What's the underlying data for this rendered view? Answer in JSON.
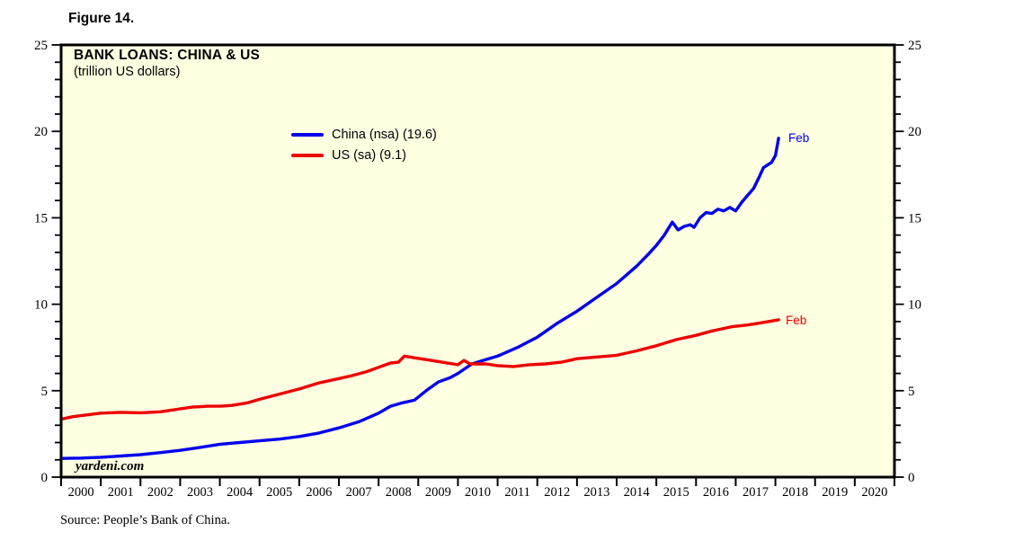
{
  "figure_label": "Figure 14.",
  "chart": {
    "title": "BANK LOANS: CHINA & US",
    "subtitle": "(trillion US dollars)",
    "watermark": "yardeni.com",
    "source": "Source: People’s Bank of China.",
    "legend": [
      {
        "label": "China (nsa) (19.6)"
      },
      {
        "label": "US (sa) (9.1)"
      }
    ],
    "end_labels": [
      {
        "text": "Feb"
      },
      {
        "text": "Feb"
      }
    ]
  },
  "chart_data": {
    "type": "line",
    "title": "BANK LOANS: CHINA & US",
    "subtitle": "(trillion US dollars)",
    "xlabel": "",
    "ylabel": "trillion US dollars",
    "xlim": [
      2000,
      2021
    ],
    "ylim": [
      0,
      25
    ],
    "y_major_ticks": [
      0,
      5,
      10,
      15,
      20,
      25
    ],
    "y_minor_step": 1,
    "x_tick_labels": [
      "2000",
      "2001",
      "2002",
      "2003",
      "2004",
      "2005",
      "2006",
      "2007",
      "2008",
      "2009",
      "2010",
      "2011",
      "2012",
      "2013",
      "2014",
      "2015",
      "2016",
      "2017",
      "2018",
      "2019",
      "2020"
    ],
    "grid": false,
    "legend_position": "inside-top-left",
    "plot_bg_color": "#FFFFE2",
    "axis_color": "#000000",
    "series": [
      {
        "name": "China (nsa)",
        "latest_point_label": "Feb",
        "latest_value": 19.6,
        "color": "#0000EE",
        "points": [
          [
            2000.0,
            1.08
          ],
          [
            2000.5,
            1.1
          ],
          [
            2001.0,
            1.15
          ],
          [
            2001.5,
            1.22
          ],
          [
            2002.0,
            1.3
          ],
          [
            2002.5,
            1.42
          ],
          [
            2003.0,
            1.55
          ],
          [
            2003.5,
            1.72
          ],
          [
            2004.0,
            1.9
          ],
          [
            2004.5,
            2.0
          ],
          [
            2005.0,
            2.1
          ],
          [
            2005.5,
            2.2
          ],
          [
            2006.0,
            2.35
          ],
          [
            2006.5,
            2.55
          ],
          [
            2007.0,
            2.85
          ],
          [
            2007.5,
            3.2
          ],
          [
            2008.0,
            3.7
          ],
          [
            2008.3,
            4.1
          ],
          [
            2008.6,
            4.3
          ],
          [
            2008.9,
            4.45
          ],
          [
            2009.2,
            5.0
          ],
          [
            2009.5,
            5.5
          ],
          [
            2009.8,
            5.75
          ],
          [
            2010.0,
            6.0
          ],
          [
            2010.35,
            6.55
          ],
          [
            2010.7,
            6.8
          ],
          [
            2011.0,
            7.0
          ],
          [
            2011.5,
            7.5
          ],
          [
            2012.0,
            8.1
          ],
          [
            2012.5,
            8.9
          ],
          [
            2013.0,
            9.6
          ],
          [
            2013.5,
            10.4
          ],
          [
            2014.0,
            11.2
          ],
          [
            2014.5,
            12.2
          ],
          [
            2014.8,
            12.9
          ],
          [
            2015.0,
            13.4
          ],
          [
            2015.2,
            14.0
          ],
          [
            2015.4,
            14.75
          ],
          [
            2015.55,
            14.3
          ],
          [
            2015.7,
            14.5
          ],
          [
            2015.85,
            14.6
          ],
          [
            2015.95,
            14.45
          ],
          [
            2016.1,
            15.0
          ],
          [
            2016.25,
            15.3
          ],
          [
            2016.4,
            15.25
          ],
          [
            2016.55,
            15.5
          ],
          [
            2016.7,
            15.4
          ],
          [
            2016.85,
            15.6
          ],
          [
            2017.0,
            15.4
          ],
          [
            2017.15,
            15.9
          ],
          [
            2017.3,
            16.3
          ],
          [
            2017.45,
            16.7
          ],
          [
            2017.6,
            17.4
          ],
          [
            2017.7,
            17.9
          ],
          [
            2017.8,
            18.05
          ],
          [
            2017.9,
            18.2
          ],
          [
            2018.0,
            18.6
          ],
          [
            2018.08,
            19.6
          ]
        ]
      },
      {
        "name": "US (sa)",
        "latest_point_label": "Feb",
        "latest_value": 9.1,
        "color": "#EE0000",
        "points": [
          [
            2000.0,
            3.35
          ],
          [
            2000.3,
            3.5
          ],
          [
            2000.7,
            3.62
          ],
          [
            2001.0,
            3.7
          ],
          [
            2001.5,
            3.75
          ],
          [
            2002.0,
            3.72
          ],
          [
            2002.5,
            3.78
          ],
          [
            2003.0,
            3.95
          ],
          [
            2003.3,
            4.05
          ],
          [
            2003.7,
            4.1
          ],
          [
            2004.0,
            4.1
          ],
          [
            2004.3,
            4.15
          ],
          [
            2004.7,
            4.3
          ],
          [
            2005.0,
            4.5
          ],
          [
            2005.5,
            4.8
          ],
          [
            2006.0,
            5.1
          ],
          [
            2006.5,
            5.45
          ],
          [
            2007.0,
            5.7
          ],
          [
            2007.3,
            5.85
          ],
          [
            2007.7,
            6.1
          ],
          [
            2008.0,
            6.35
          ],
          [
            2008.3,
            6.6
          ],
          [
            2008.5,
            6.65
          ],
          [
            2008.65,
            7.0
          ],
          [
            2008.9,
            6.9
          ],
          [
            2009.2,
            6.8
          ],
          [
            2009.6,
            6.65
          ],
          [
            2010.0,
            6.5
          ],
          [
            2010.15,
            6.75
          ],
          [
            2010.3,
            6.55
          ],
          [
            2010.7,
            6.55
          ],
          [
            2011.0,
            6.45
          ],
          [
            2011.4,
            6.4
          ],
          [
            2011.8,
            6.5
          ],
          [
            2012.2,
            6.55
          ],
          [
            2012.6,
            6.65
          ],
          [
            2013.0,
            6.85
          ],
          [
            2013.5,
            6.95
          ],
          [
            2014.0,
            7.05
          ],
          [
            2014.5,
            7.3
          ],
          [
            2015.0,
            7.6
          ],
          [
            2015.5,
            7.95
          ],
          [
            2016.0,
            8.2
          ],
          [
            2016.4,
            8.45
          ],
          [
            2016.9,
            8.7
          ],
          [
            2017.3,
            8.8
          ],
          [
            2017.7,
            8.95
          ],
          [
            2018.08,
            9.1
          ]
        ]
      }
    ]
  }
}
